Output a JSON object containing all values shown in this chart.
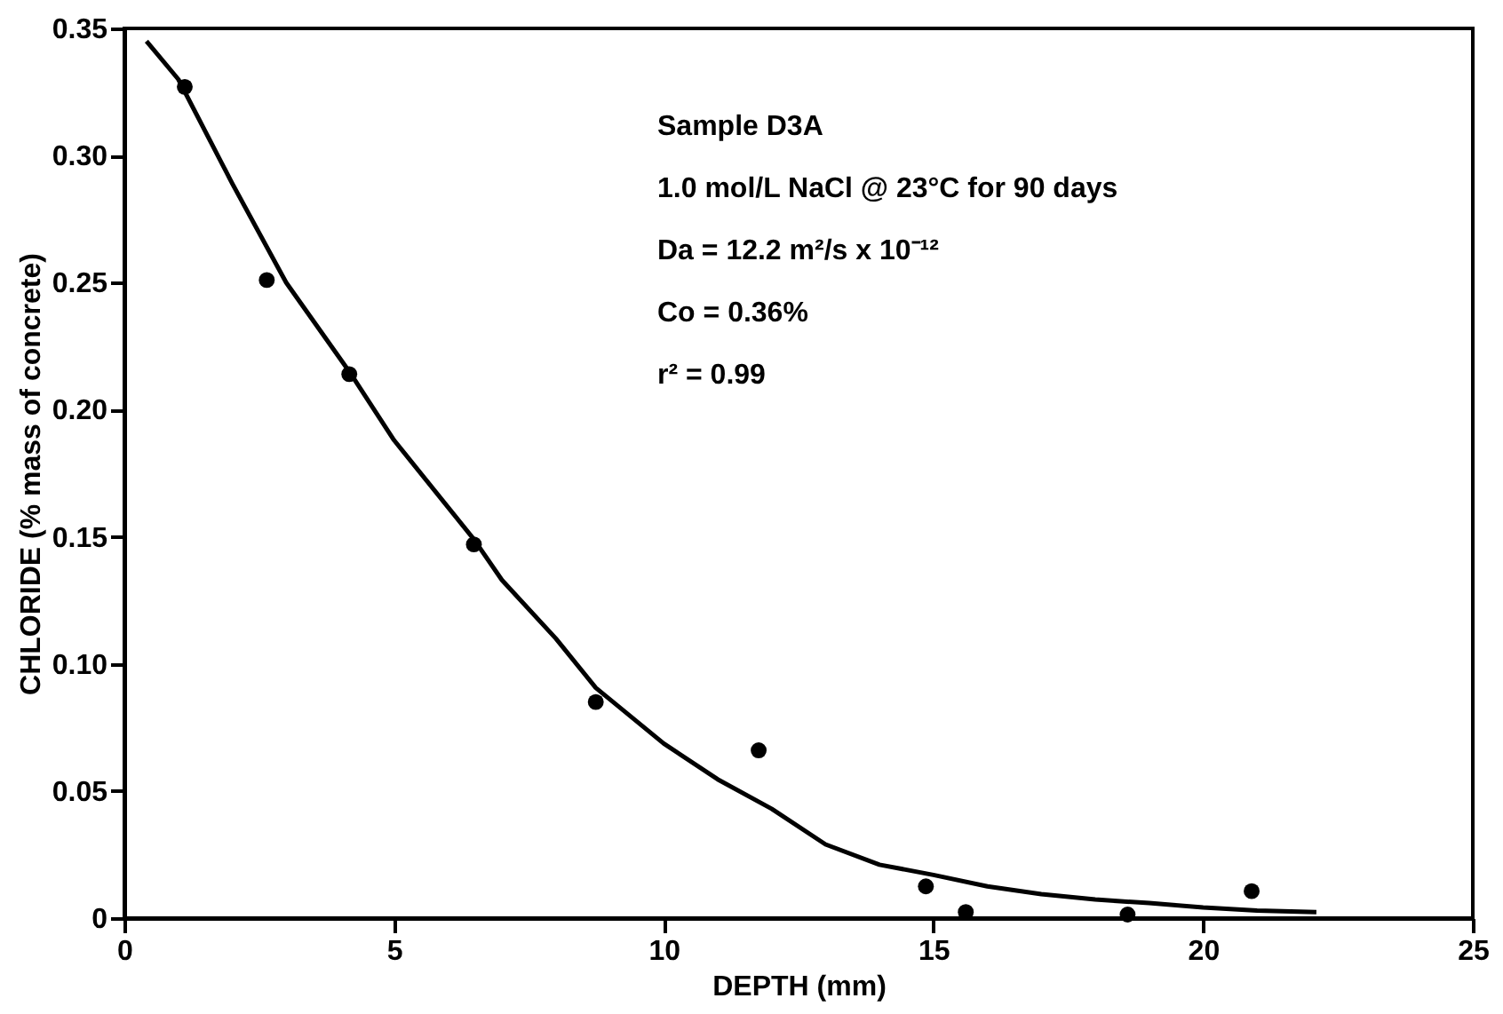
{
  "chart_data": {
    "type": "scatter",
    "xlabel": "DEPTH (mm)",
    "ylabel": "CHLORIDE (% mass of concrete)",
    "xlim": [
      0,
      25
    ],
    "xticks": [
      0,
      5,
      10,
      15,
      20,
      25
    ],
    "ylim": [
      0,
      0.35
    ],
    "yticks": [
      0,
      0.05,
      {
        "value": 0.1,
        "label": "0.10"
      },
      0.15,
      {
        "value": 0.2,
        "label": "0.20"
      },
      0.25,
      {
        "value": 0.3,
        "label": "0.30"
      },
      0.35
    ],
    "grid": false,
    "line_style": "solid",
    "series": [
      {
        "type": "scatter",
        "marker": "circle",
        "color": "#000000",
        "x": [
          1.12,
          2.64,
          4.17,
          6.48,
          8.74,
          11.76,
          14.86,
          15.6,
          18.6,
          20.9
        ],
        "values": [
          0.327,
          0.251,
          0.214,
          0.147,
          0.085,
          0.066,
          0.0125,
          0.0024,
          0.0014,
          0.0106
        ]
      },
      {
        "type": "line",
        "marker": "none",
        "color": "#000000",
        "x": [
          0.41,
          1,
          2,
          3,
          4.17,
          5,
          6.48,
          7,
          8,
          8.74,
          10,
          11,
          12,
          13,
          14,
          15,
          16,
          17,
          18,
          19,
          20,
          21,
          22.1
        ],
        "values": [
          0.345,
          0.33,
          0.289,
          0.25,
          0.215,
          0.188,
          0.149,
          0.133,
          0.11,
          0.0906,
          0.0687,
          0.0546,
          0.043,
          0.029,
          0.021,
          0.017,
          0.0125,
          0.0094,
          0.0073,
          0.0059,
          0.0042,
          0.003,
          0.0024
        ]
      }
    ],
    "annotations": [
      "Sample D3A",
      "1.0 mol/L NaCl @ 23°C for 90 days",
      "Da = 12.2 m²/s x 10⁻¹²",
      "Co = 0.36%",
      "r² = 0.99"
    ]
  }
}
